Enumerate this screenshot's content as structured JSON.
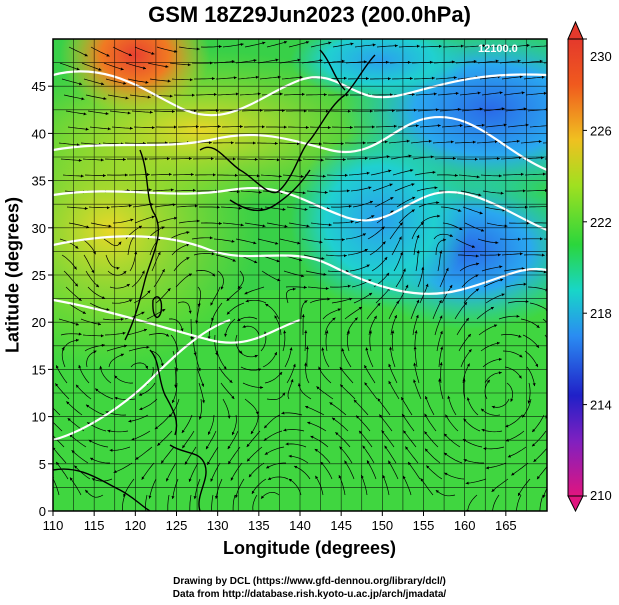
{
  "title": "GSM 18Z29Jun2023 (200.0hPa)",
  "xlabel": "Longitude (degrees)",
  "ylabel": "Latitude  (degrees)",
  "credits": [
    "Drawing by DCL (https://www.gfd-dennou.org/library/dcl/)",
    "Data from http://database.rish.kyoto-u.ac.jp/arch/jmadata/"
  ],
  "contour_label": "12100.0",
  "chart_data": {
    "type": "heatmap",
    "title": "GSM 18Z29Jun2023 (200.0hPa)",
    "xlabel": "Longitude (degrees)",
    "ylabel": "Latitude  (degrees)",
    "xlim": [
      110,
      170
    ],
    "ylim": [
      0,
      50
    ],
    "x_ticks": [
      "110",
      "115",
      "120",
      "125",
      "130",
      "135",
      "140",
      "145",
      "150",
      "155",
      "160",
      "165"
    ],
    "y_ticks": [
      "0",
      "5",
      "10",
      "15",
      "20",
      "25",
      "30",
      "35",
      "40",
      "45"
    ],
    "grid": true,
    "colorbar": {
      "min": 210,
      "max": 230,
      "ticks": [
        "210",
        "214",
        "218",
        "222",
        "226",
        "230"
      ],
      "colors": [
        "#e0157f",
        "#2020c8",
        "#2a8cf2",
        "#18d6c8",
        "#2bd63c",
        "#a0e020",
        "#f0c020",
        "#f05a1e",
        "#e4392c"
      ]
    }
  }
}
